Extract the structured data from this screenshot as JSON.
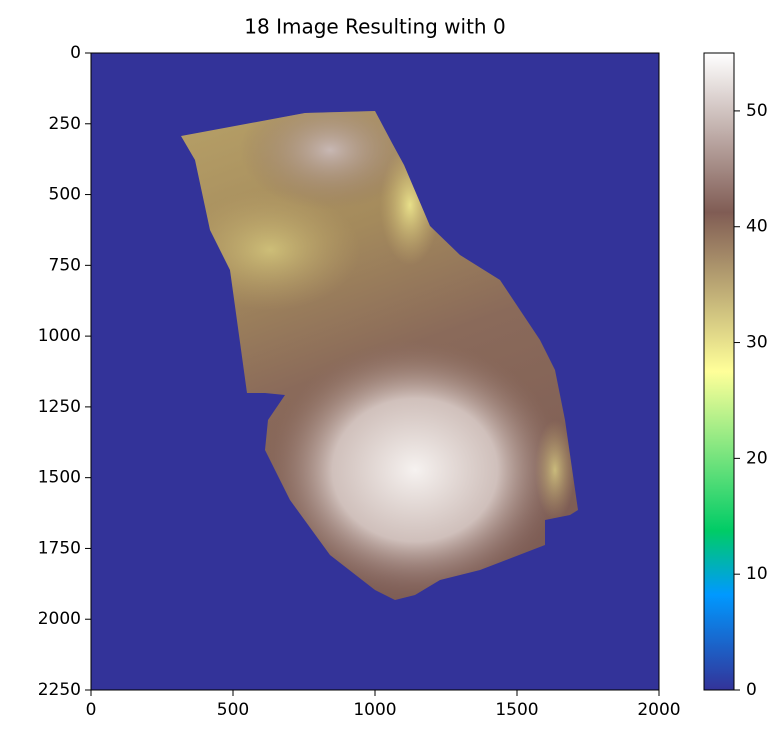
{
  "chart_data": {
    "type": "image",
    "title": "18 Image Resulting with 0",
    "xlim": [
      0,
      2000
    ],
    "xticks": [
      0,
      500,
      1000,
      1500,
      2000
    ],
    "ylim": [
      2250,
      0
    ],
    "yticks": [
      0,
      250,
      500,
      750,
      1000,
      1250,
      1500,
      1750,
      2000,
      2250
    ],
    "colorbar": {
      "lim": [
        0,
        55
      ],
      "ticks": [
        0,
        10,
        20,
        30,
        40,
        50
      ],
      "colormap": "terrain"
    },
    "background_color": "#333399"
  }
}
